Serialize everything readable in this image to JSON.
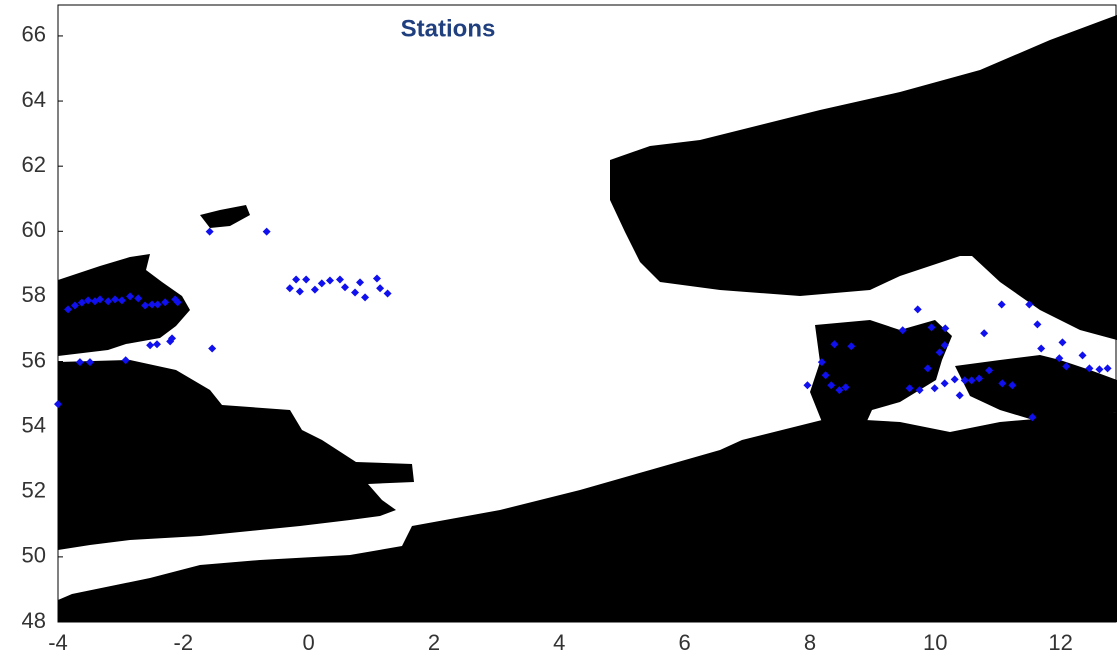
{
  "chart_data": {
    "type": "scatter",
    "title": "Stations",
    "color": "#1010ee",
    "xlim": [
      -4,
      12.9
    ],
    "ylim": [
      48,
      66.95
    ],
    "xticks": [
      -4,
      -2,
      0,
      2,
      4,
      6,
      8,
      10,
      12
    ],
    "yticks": [
      48,
      50,
      52,
      54,
      56,
      58,
      60,
      62,
      64,
      66
    ],
    "x": [
      -4.0,
      -3.84,
      -3.73,
      -3.62,
      -3.52,
      -3.41,
      -3.33,
      -3.2,
      -3.09,
      -2.98,
      -2.85,
      -2.72,
      -2.61,
      -2.5,
      -2.41,
      -2.29,
      -2.13,
      -2.09,
      -3.65,
      -3.49,
      -2.92,
      -2.53,
      -2.42,
      -2.21,
      -2.18,
      -1.54,
      -1.58,
      -0.67,
      -0.3,
      -0.14,
      -0.2,
      -0.04,
      0.1,
      0.21,
      0.34,
      0.5,
      0.58,
      0.74,
      0.82,
      0.9,
      1.09,
      1.14,
      1.26,
      7.96,
      8.19,
      8.25,
      8.34,
      8.47,
      8.57,
      8.39,
      8.66,
      9.72,
      9.48,
      9.94,
      10.16,
      10.15,
      10.07,
      9.88,
      9.99,
      9.59,
      9.75,
      10.15,
      10.31,
      10.47,
      10.58,
      10.39,
      10.7,
      10.86,
      10.78,
      11.06,
      11.07,
      11.23,
      11.5,
      11.63,
      11.69,
      12.03,
      11.98,
      12.09,
      12.35,
      12.46,
      12.62,
      12.75,
      11.55
    ],
    "y": [
      54.69,
      57.6,
      57.72,
      57.81,
      57.88,
      57.85,
      57.91,
      57.85,
      57.91,
      57.88,
      58.0,
      57.94,
      57.72,
      57.75,
      57.75,
      57.82,
      57.91,
      57.82,
      55.98,
      55.98,
      56.04,
      56.5,
      56.53,
      56.62,
      56.71,
      56.4,
      59.99,
      59.99,
      58.25,
      58.15,
      58.52,
      58.52,
      58.21,
      58.4,
      58.49,
      58.52,
      58.28,
      58.12,
      58.43,
      57.97,
      58.55,
      58.25,
      58.09,
      55.27,
      55.98,
      55.58,
      55.27,
      55.12,
      55.21,
      56.53,
      56.47,
      57.6,
      56.96,
      57.05,
      57.02,
      56.5,
      56.28,
      55.79,
      55.18,
      55.18,
      55.12,
      55.33,
      55.45,
      55.42,
      55.42,
      54.96,
      55.48,
      55.73,
      56.87,
      57.75,
      55.33,
      55.27,
      57.75,
      57.14,
      56.4,
      56.59,
      56.1,
      55.85,
      56.19,
      55.79,
      55.76,
      55.79,
      54.29
    ]
  }
}
